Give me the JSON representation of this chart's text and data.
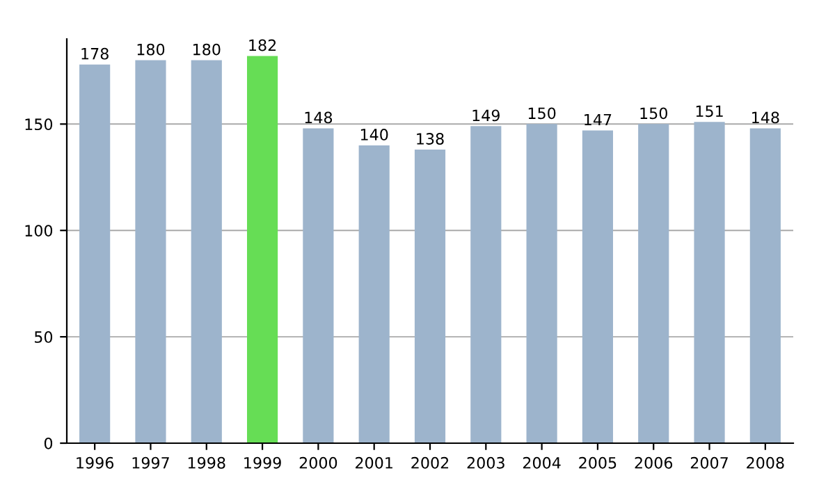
{
  "chart_data": {
    "type": "bar",
    "categories": [
      "1996",
      "1997",
      "1998",
      "1999",
      "2000",
      "2001",
      "2002",
      "2003",
      "2004",
      "2005",
      "2006",
      "2007",
      "2008"
    ],
    "values": [
      178,
      180,
      180,
      182,
      148,
      140,
      138,
      149,
      150,
      147,
      150,
      151,
      148
    ],
    "colors": [
      "#9db4cc",
      "#9db4cc",
      "#9db4cc",
      "#66dd55",
      "#9db4cc",
      "#9db4cc",
      "#9db4cc",
      "#9db4cc",
      "#9db4cc",
      "#9db4cc",
      "#9db4cc",
      "#9db4cc",
      "#9db4cc"
    ],
    "ylim": [
      0,
      190
    ],
    "yticks": [
      0,
      50,
      100,
      150
    ],
    "grid": "y",
    "data_labels": true
  }
}
